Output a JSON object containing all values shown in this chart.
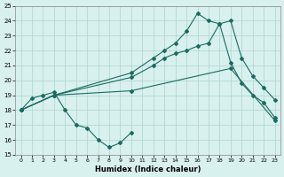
{
  "xlabel": "Humidex (Indice chaleur)",
  "bg_color": "#d8f0ee",
  "grid_color": "#aed4ce",
  "line_color": "#1a6b60",
  "xlim": [
    -0.5,
    23.5
  ],
  "ylim": [
    15,
    25
  ],
  "xticks": [
    0,
    1,
    2,
    3,
    4,
    5,
    6,
    7,
    8,
    9,
    10,
    11,
    12,
    13,
    14,
    15,
    16,
    17,
    18,
    19,
    20,
    21,
    22,
    23
  ],
  "yticks": [
    15,
    16,
    17,
    18,
    19,
    20,
    21,
    22,
    23,
    24,
    25
  ],
  "line1_x": [
    0,
    1,
    2,
    3,
    4,
    5,
    6,
    7,
    8,
    9,
    10
  ],
  "line1_y": [
    18,
    18.8,
    19,
    19.2,
    18,
    17,
    16.8,
    16,
    15.5,
    15.8,
    16.5
  ],
  "line2_x": [
    0,
    3,
    10,
    19,
    23
  ],
  "line2_y": [
    18,
    19,
    19.3,
    20.8,
    17.3
  ],
  "line3_x": [
    0,
    3,
    10,
    12,
    13,
    14,
    15,
    16,
    17,
    18,
    19,
    20,
    21,
    22,
    23
  ],
  "line3_y": [
    18,
    19,
    20.5,
    21.5,
    22.0,
    22.5,
    23.3,
    24.5,
    24.0,
    23.8,
    24.0,
    21.5,
    20.3,
    19.5,
    18.7
  ],
  "line4_x": [
    0,
    3,
    10,
    12,
    13,
    14,
    15,
    16,
    17,
    18,
    19,
    20,
    21,
    22,
    23
  ],
  "line4_y": [
    18,
    19,
    20.2,
    21.0,
    21.5,
    21.8,
    22.0,
    22.3,
    22.5,
    23.8,
    21.2,
    19.8,
    19.0,
    18.5,
    17.5
  ]
}
